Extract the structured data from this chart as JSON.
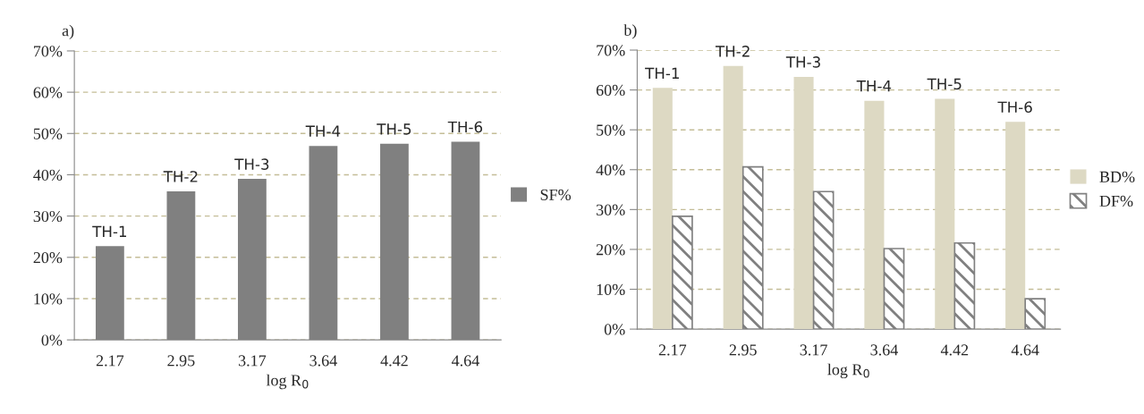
{
  "chart_data": [
    {
      "type": "bar",
      "title": "a)",
      "xlabel": "log R$_{0}$",
      "categories": [
        "2.17",
        "2.95",
        "3.17",
        "3.64",
        "4.42",
        "4.64"
      ],
      "series": [
        {
          "name": "SF%",
          "color": "#808080",
          "values": [
            22.7,
            36,
            39,
            47,
            47.5,
            48
          ]
        }
      ],
      "ylim": [
        0,
        70
      ],
      "yticks": [
        {
          "value": 0,
          "label": "0%"
        },
        {
          "value": 10,
          "label": "10%"
        },
        {
          "value": 20,
          "label": "20%"
        },
        {
          "value": 30,
          "label": "30%"
        },
        {
          "value": 40,
          "label": "40%"
        },
        {
          "value": 50,
          "label": "50%"
        },
        {
          "value": 60,
          "label": "60%"
        },
        {
          "value": 70,
          "label": "70%"
        }
      ],
      "grid": "y",
      "legend": "right",
      "annotations": [
        {
          "text": "TH-1",
          "x": "2.17",
          "y": 22.7
        },
        {
          "text": "TH-2",
          "x": "2.95",
          "y": 36
        },
        {
          "text": "TH-3",
          "x": "3.17",
          "y": 39
        },
        {
          "text": "TH-4",
          "x": "3.64",
          "y": 47
        },
        {
          "text": "TH-5",
          "x": "4.42",
          "y": 47.5
        },
        {
          "text": "TH-6",
          "x": "4.64",
          "y": 48
        }
      ]
    },
    {
      "type": "bar",
      "title": "b)",
      "xlabel": "log R$_{0}$",
      "categories": [
        "2.17",
        "2.95",
        "3.17",
        "3.64",
        "4.42",
        "4.64"
      ],
      "series": [
        {
          "name": "BD%",
          "color": "#ddd9c3",
          "values": [
            60.5,
            66,
            63.3,
            57.3,
            57.8,
            52
          ]
        },
        {
          "name": "DF%",
          "color": "#808080",
          "values": [
            28.3,
            40.7,
            34.5,
            20.2,
            21.6,
            7.6
          ]
        }
      ],
      "ylim": [
        0,
        70
      ],
      "yticks": [
        {
          "value": 0,
          "label": "0%"
        },
        {
          "value": 10,
          "label": "10%"
        },
        {
          "value": 20,
          "label": "20%"
        },
        {
          "value": 30,
          "label": "30%"
        },
        {
          "value": 40,
          "label": "40%"
        },
        {
          "value": 50,
          "label": "50%"
        },
        {
          "value": 60,
          "label": "60%"
        },
        {
          "value": 70,
          "label": "70%"
        }
      ],
      "grid": "y",
      "legend": "right",
      "annotations": [
        {
          "text": "TH-1",
          "x": "2.17",
          "y": 60.5
        },
        {
          "text": "TH-2",
          "x": "2.95",
          "y": 66
        },
        {
          "text": "TH-3",
          "x": "3.17",
          "y": 63.3
        },
        {
          "text": "TH-4",
          "x": "3.64",
          "y": 57.3
        },
        {
          "text": "TH-5",
          "x": "4.42",
          "y": 57.8
        },
        {
          "text": "TH-6",
          "x": "4.64",
          "y": 52
        }
      ]
    }
  ]
}
